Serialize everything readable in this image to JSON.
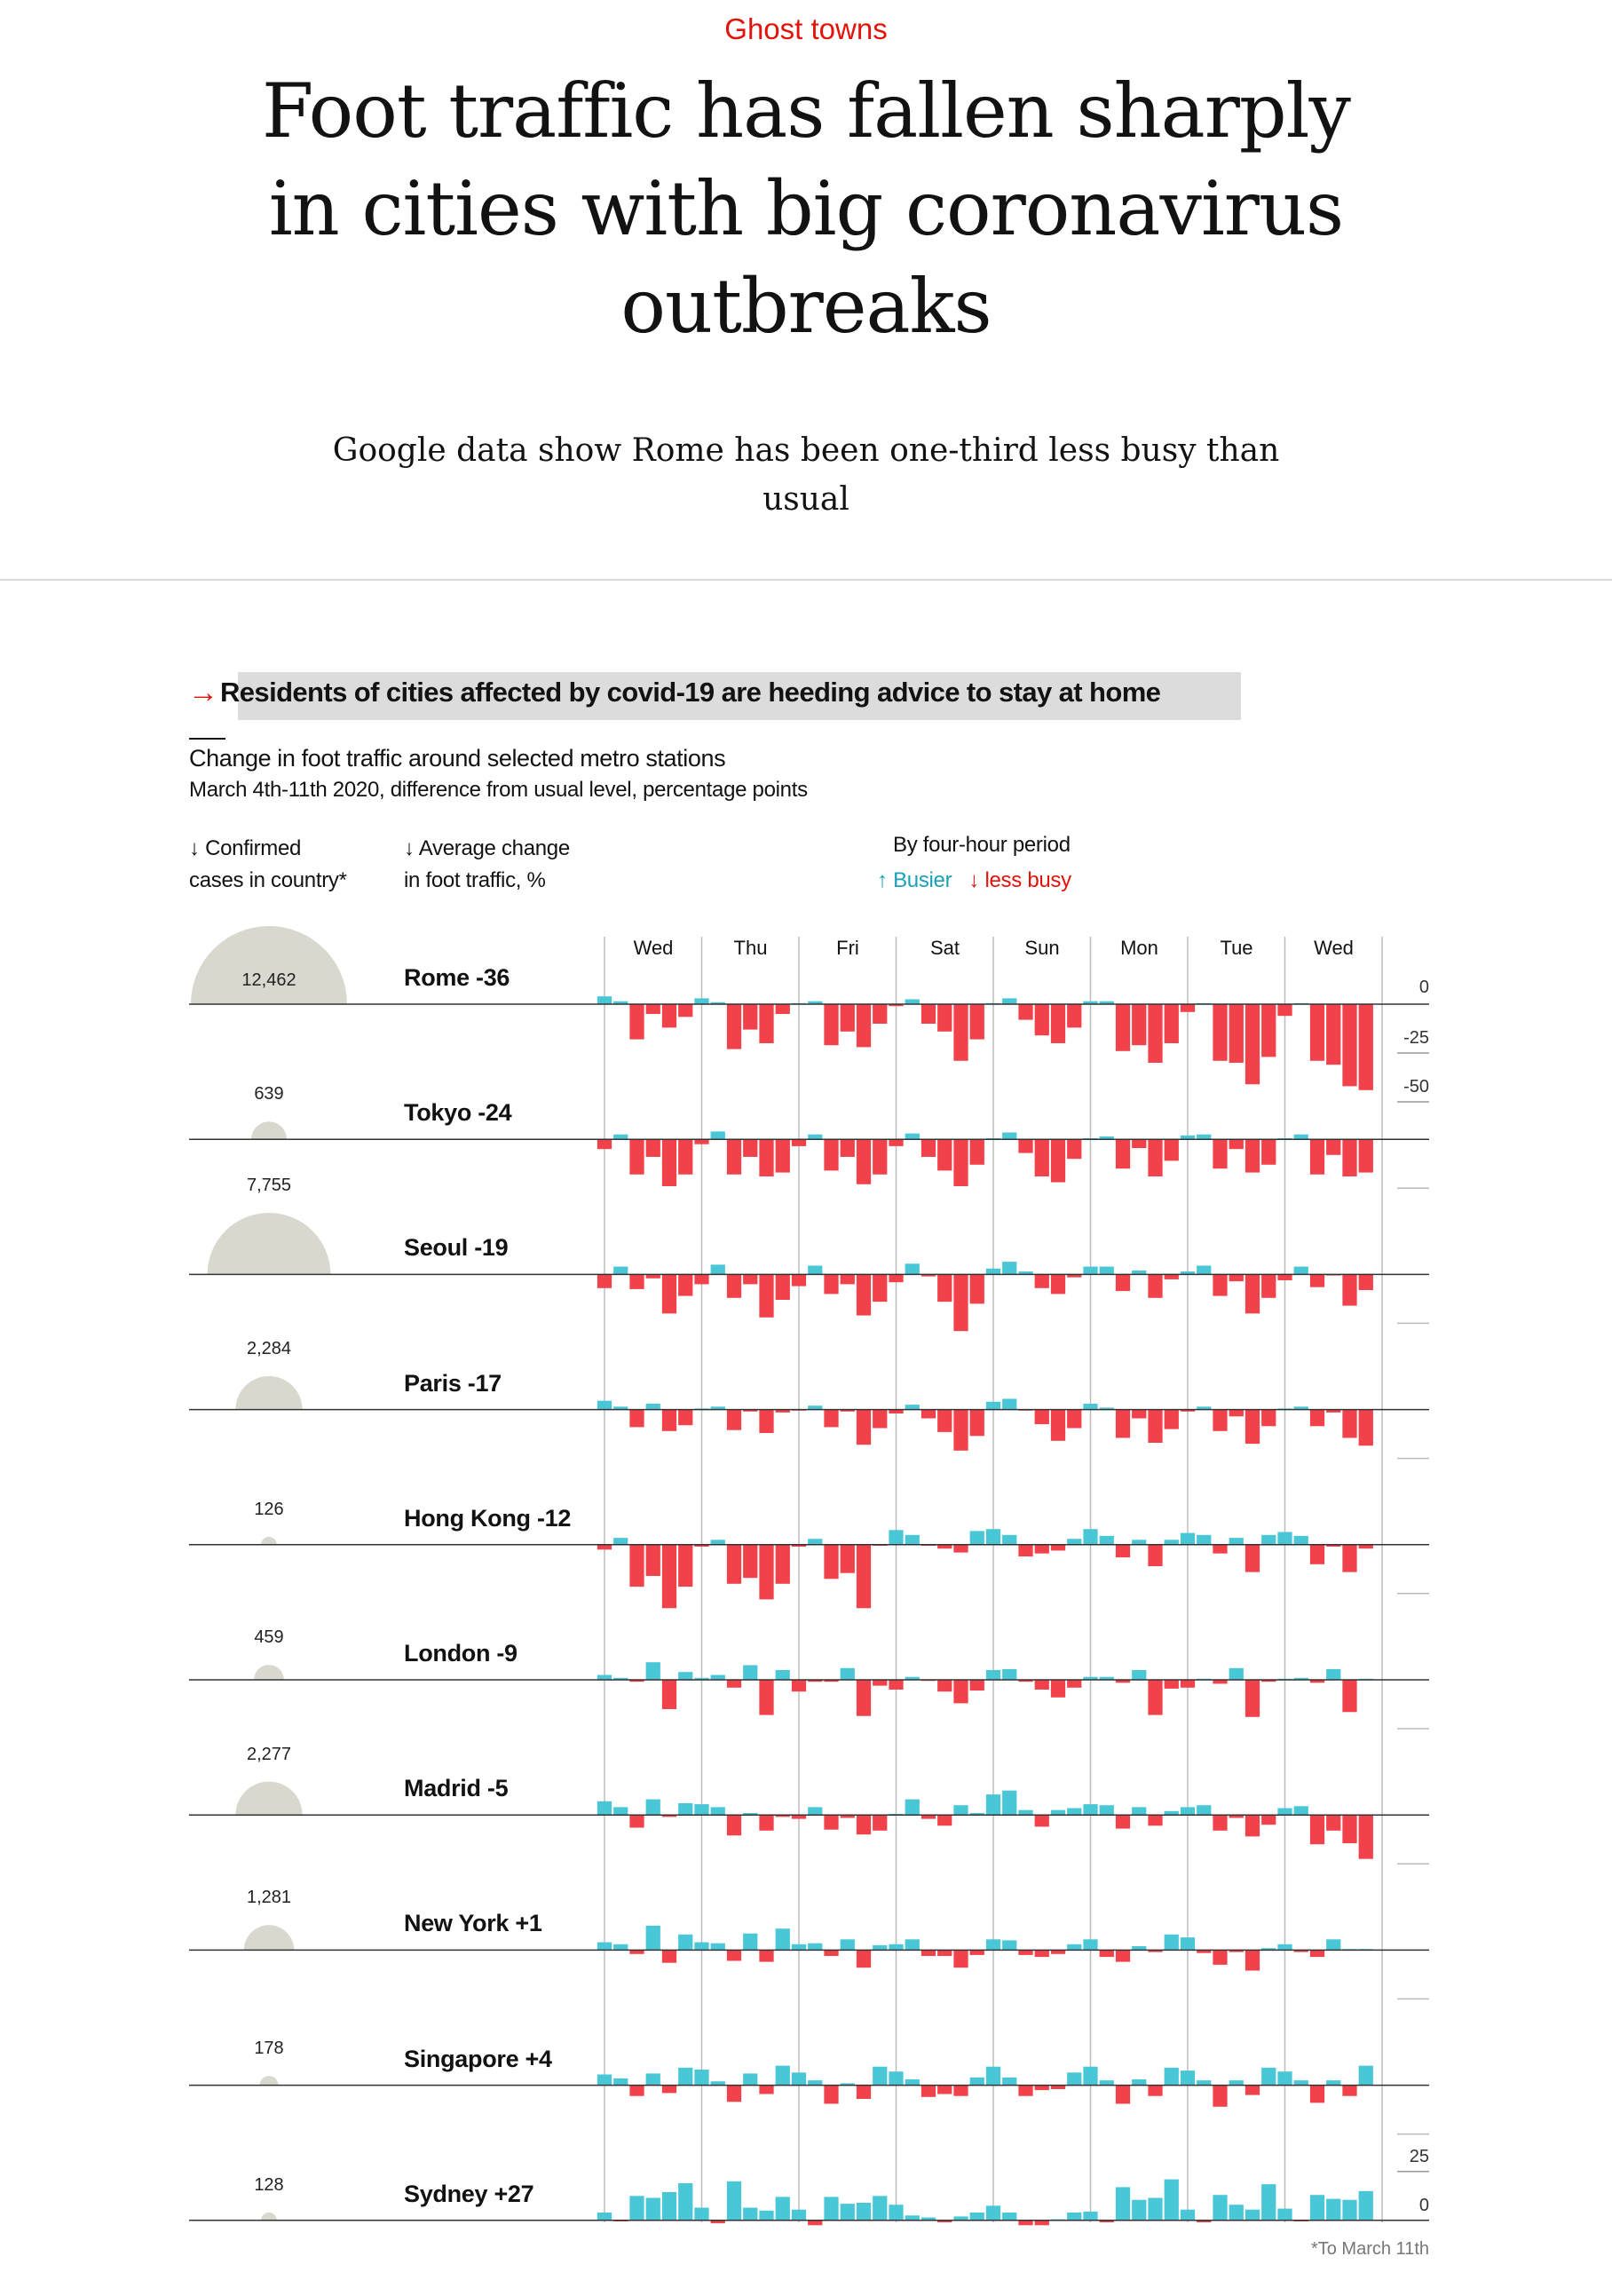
{
  "kicker": "Ghost towns",
  "title": "Foot traffic has fallen sharply in cities with big coronavirus outbreaks",
  "subtitle": "Google data show Rome has been one-third less busy than usual",
  "chart_heading": "Residents of cities affected by covid-19 are heeding advice to stay at home",
  "colors": {
    "busier": "#4ac7d7",
    "less_busy": "#f1414b",
    "circle": "#d9d8cf",
    "accent": "#e3120b"
  },
  "chart_data": {
    "type": "bar",
    "title": "Change in foot traffic around selected metro stations",
    "subtitle": "March 4th-11th 2020, difference from usual level, percentage points",
    "col_cases": [
      "↓ Confirmed",
      "cases in country*"
    ],
    "col_avg": [
      "↓ Average change",
      "in foot traffic, %"
    ],
    "period_label": "By four-hour period",
    "legend": {
      "busier": "↑ Busier",
      "less_busy": "↓ less busy"
    },
    "days": [
      "Wed",
      "Thu",
      "Fri",
      "Sat",
      "Sun",
      "Mon",
      "Tue",
      "Wed"
    ],
    "periods_per_day": 6,
    "ylim": [
      -50,
      25
    ],
    "ticks_top": [
      "0",
      "-25",
      "-50"
    ],
    "ticks_bottom": [
      "25",
      "0"
    ],
    "footnote": "*To March 11th",
    "series": [
      {
        "name": "Rome -36",
        "cases": "12,462",
        "values": [
          4,
          1.5,
          -18,
          -5,
          -12,
          -6.5,
          3,
          1,
          -23,
          -13,
          -20,
          -5,
          0.5,
          1.5,
          -21,
          -14,
          -22,
          -10,
          -1,
          2.5,
          -10,
          -14,
          -29,
          -18,
          0.5,
          3,
          -8,
          -16,
          -20,
          -12,
          1.5,
          1.5,
          -24,
          -21,
          -30,
          -20,
          -4,
          0.5,
          -29,
          -30,
          -41,
          -27,
          -6,
          0.5,
          -29,
          -31,
          -42,
          -44
        ]
      },
      {
        "name": "Tokyo -24",
        "cases": "639",
        "values": [
          -5,
          2.5,
          -18,
          -9,
          -24,
          -18,
          -2.5,
          4,
          -18,
          -9,
          -19,
          -17,
          -3.5,
          2.5,
          -16,
          -9,
          -23,
          -18,
          -3.5,
          3,
          -9,
          -16,
          -24,
          -13,
          0.3,
          3.5,
          -7,
          -19,
          -22,
          -10,
          0.3,
          1.5,
          -15,
          -4.5,
          -19,
          -11,
          2,
          2.5,
          -15,
          -5,
          -17,
          -13,
          0.3,
          2.5,
          -18,
          -8,
          -19,
          -17
        ]
      },
      {
        "name": "Seoul -19",
        "cases": "7,755",
        "values": [
          -7,
          4,
          -7.5,
          -2,
          -20,
          -11,
          -5,
          5,
          -12,
          -5,
          -22,
          -13,
          -6,
          4.5,
          -10,
          -5,
          -21,
          -14,
          -4,
          5.5,
          -1,
          -14,
          -29,
          -15,
          3,
          6.5,
          1.5,
          -7,
          -10,
          -1.5,
          4,
          4,
          -8.5,
          2,
          -12,
          -2.5,
          1.5,
          4.5,
          -11,
          -3.5,
          -20,
          -12,
          -3,
          4,
          -6.5,
          -0.5,
          -16,
          -8
        ]
      },
      {
        "name": "Paris -17",
        "cases": "2,284",
        "values": [
          4.5,
          1.5,
          -9,
          3,
          -11,
          -8,
          0.5,
          1.5,
          -10.5,
          -1,
          -12,
          -1.5,
          -0.3,
          2,
          -9,
          -1,
          -18,
          -9.5,
          -2,
          2.5,
          -4.5,
          -11.5,
          -21,
          -13.5,
          4,
          5.5,
          -0.5,
          -7.5,
          -16,
          -9.5,
          3,
          1,
          -14.5,
          -4.5,
          -17,
          -10,
          -1,
          1.5,
          -11,
          -3.5,
          -17.5,
          -8.5,
          0.5,
          1.5,
          -8.5,
          -1.5,
          -14.5,
          -18.5
        ]
      },
      {
        "name": "Hong Kong -12",
        "cases": "126",
        "values": [
          -2.5,
          3.5,
          -21.5,
          -16,
          -32.5,
          -21.5,
          -1,
          2.5,
          -20,
          -17,
          -28,
          -20,
          -1,
          3,
          -17.5,
          -14.5,
          -32.5,
          -0.2,
          7.5,
          5,
          -0.2,
          -2,
          -4,
          7,
          8,
          5,
          -6,
          -4.5,
          -3,
          3,
          8,
          4.5,
          -6.5,
          2.5,
          -11,
          2.5,
          6,
          5,
          -4.5,
          3.5,
          -14,
          5,
          6.5,
          4.5,
          -10,
          -1,
          -14,
          -2
        ]
      },
      {
        "name": "London -9",
        "cases": "459",
        "values": [
          2.5,
          1,
          -1,
          9,
          -15,
          4,
          1,
          2.5,
          -4,
          7.5,
          -18,
          5,
          -6,
          -1,
          -1,
          6,
          -18.5,
          -3,
          -5,
          1.5,
          -0.5,
          -6,
          -12,
          -5.5,
          5,
          5.5,
          -1,
          -5,
          -9,
          -4,
          1.5,
          1.5,
          -1.5,
          5,
          -18,
          -4.5,
          -4,
          0.5,
          -2,
          6,
          -19,
          -1,
          0.5,
          1,
          -1.5,
          5.5,
          -16.5,
          0
        ]
      },
      {
        "name": "Madrid -5",
        "cases": "2,277",
        "values": [
          7,
          4,
          -6.5,
          8,
          -1,
          6,
          5.5,
          4,
          -10.5,
          1,
          -8,
          -1,
          -2,
          4,
          -7.5,
          -1.5,
          -10,
          -8,
          0,
          8,
          -2,
          -5.5,
          5,
          1,
          10.5,
          12.5,
          2.5,
          -6,
          2.5,
          3.5,
          5.5,
          5,
          -7,
          4,
          -5.5,
          2,
          4,
          5,
          -8,
          -1.5,
          -11,
          -5,
          3.5,
          4.5,
          -15,
          -8,
          -14.5,
          -22.5
        ]
      },
      {
        "name": "New York +1",
        "cases": "1,281",
        "values": [
          4,
          3,
          -2,
          12.5,
          -6.5,
          8,
          4,
          3.5,
          -5.5,
          8.5,
          -6,
          11,
          3,
          3.5,
          -3,
          5.5,
          -9,
          2.5,
          3,
          5.5,
          -3,
          -3,
          -9,
          -2.5,
          5.5,
          5,
          -2.5,
          -3.5,
          -2,
          3,
          5.5,
          -3.5,
          -6,
          2,
          -1,
          8,
          6.5,
          -1.5,
          -7.5,
          -1,
          -10.5,
          1,
          3,
          -1,
          -3.5,
          5.5,
          0,
          0
        ]
      },
      {
        "name": "Singapore +4",
        "cases": "178",
        "values": [
          5.5,
          3.5,
          -5.5,
          6,
          -4,
          9,
          8,
          2,
          -8.5,
          6,
          -4.5,
          10,
          6.5,
          2.5,
          -9.5,
          1,
          -7,
          9.5,
          7,
          3,
          -6,
          -4.5,
          -5.5,
          4,
          9.5,
          4,
          -5.5,
          -2.5,
          -2,
          6.5,
          9.5,
          2.5,
          -9.5,
          3,
          -5.5,
          9,
          7.5,
          2.5,
          -11,
          2.5,
          -5,
          9,
          7,
          2.5,
          -9,
          2.5,
          -5.5,
          10
        ]
      },
      {
        "name": "Sydney +27",
        "cases": "128",
        "values": [
          4,
          -0.5,
          12.5,
          11.5,
          14.5,
          19,
          6.5,
          -1.5,
          20,
          6.5,
          5,
          12,
          5.5,
          -2.5,
          12,
          8.5,
          9,
          12.5,
          8,
          2.5,
          1.5,
          -1,
          2,
          4,
          7.5,
          4,
          -2.5,
          -2.5,
          0.5,
          4,
          4.5,
          -1,
          17,
          10.5,
          11.5,
          21,
          5.5,
          -1,
          13,
          8,
          5.5,
          18.5,
          6,
          -0.5,
          13,
          11,
          10.5,
          15
        ]
      }
    ]
  }
}
